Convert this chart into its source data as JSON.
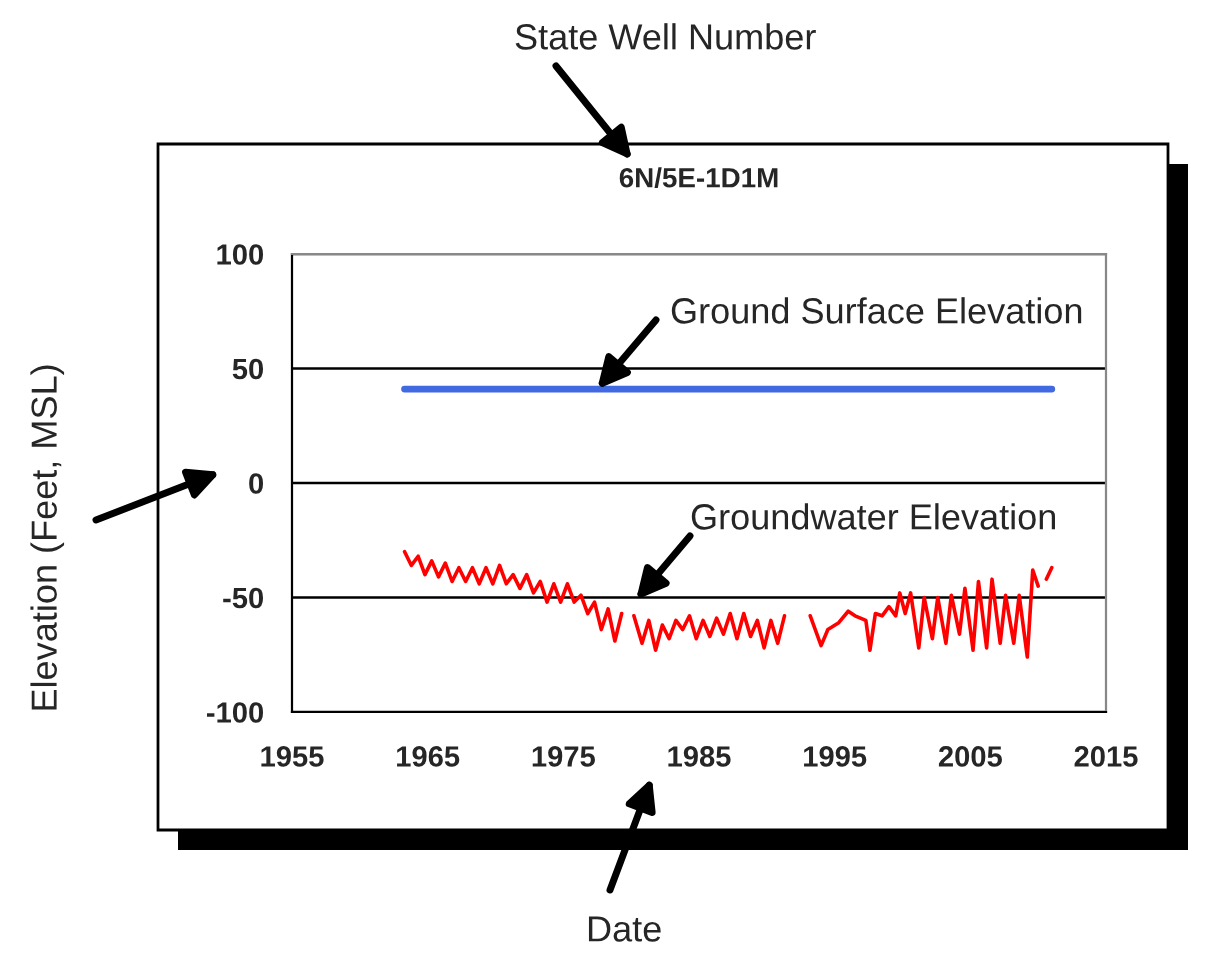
{
  "chart_data": {
    "type": "line",
    "title": "6N/5E-1D1M",
    "ylabel": "Elevation (Feet, MSL)",
    "annotations": [
      {
        "text": "Ground Surface Elevation",
        "x": 1977.5,
        "y": 41
      },
      "Groundwater Elevation",
      "State Well Number",
      "Date"
    ],
    "xlim": [
      1955,
      2015
    ],
    "xticks": [
      1955,
      1965,
      1975,
      1985,
      1995,
      2005,
      2015
    ],
    "ylim": [
      -100,
      100
    ],
    "yticks": [
      -100,
      -50,
      0,
      50,
      100
    ],
    "grid": "y",
    "marker": "none",
    "line_style": "solid",
    "series": [
      {
        "color": "#4169e1",
        "x": [
          1963.3,
          2011.0
        ],
        "values": [
          41,
          41
        ]
      },
      {
        "color": "#ff0000",
        "x": [
          1963.3,
          1963.8,
          1964.3,
          1964.8,
          1965.3,
          1965.8,
          1966.3,
          1966.8,
          1967.3,
          1967.8,
          1968.3,
          1968.8,
          1969.3,
          1969.8,
          1970.3,
          1970.8,
          1971.3,
          1971.8,
          1972.3,
          1972.8,
          1973.3,
          1973.8,
          1974.3,
          1974.8,
          1975.3,
          1975.8,
          1976.3,
          1976.8,
          1977.3,
          1977.8,
          1978.3,
          1978.8,
          1979.3,
          1979.8,
          1980.2,
          1980.8,
          1981.3,
          1981.8,
          1982.3,
          1982.8,
          1983.3,
          1983.8,
          1984.3,
          1984.8,
          1985.3,
          1985.8,
          1986.3,
          1986.8,
          1987.3,
          1987.8,
          1988.3,
          1988.8,
          1989.3,
          1989.8,
          1990.3,
          1990.8,
          1991.3,
          1992.3,
          1993.2,
          1994.0,
          1994.5,
          1995.3,
          1996.0,
          1996.5,
          1997.3,
          1997.6,
          1998.0,
          1998.5,
          1999.0,
          1999.5,
          1999.8,
          2000.2,
          2000.6,
          2001.2,
          2001.6,
          2002.2,
          2002.6,
          2003.2,
          2003.6,
          2004.2,
          2004.6,
          2005.2,
          2005.6,
          2006.2,
          2006.6,
          2007.2,
          2007.6,
          2008.2,
          2008.6,
          2009.2,
          2009.6,
          2010.0,
          2010.2,
          2010.6,
          2011.0
        ],
        "values": [
          -30,
          -36,
          -32,
          -40,
          -34,
          -41,
          -35,
          -43,
          -37,
          -43,
          -37,
          -44,
          -37,
          -44,
          -36,
          -44,
          -40,
          -46,
          -40,
          -48,
          -43,
          -52,
          -44,
          -52,
          -44,
          -52,
          -49,
          -57,
          -52,
          -64,
          -55,
          -69,
          -57,
          null,
          -58,
          -70,
          -60,
          -73,
          -62,
          -68,
          -60,
          -64,
          -58,
          -68,
          -60,
          -67,
          -59,
          -66,
          -57,
          -68,
          -57,
          -67,
          -60,
          -72,
          -60,
          -70,
          -58,
          null,
          -58,
          -71,
          -64,
          -61,
          -56,
          -58,
          -60,
          -73,
          -57,
          -58,
          -54,
          -58,
          -48,
          -57,
          -48,
          -72,
          -50,
          -68,
          -50,
          -70,
          -49,
          -66,
          -46,
          -73,
          -43,
          -72,
          -42,
          -70,
          -49,
          -70,
          -49,
          -76,
          -38,
          -45,
          null,
          -42,
          -37
        ]
      }
    ]
  }
}
